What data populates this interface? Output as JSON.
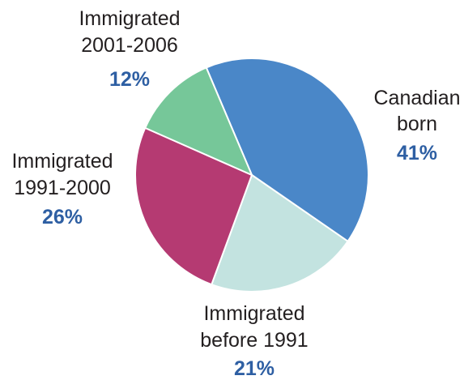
{
  "chart_data": {
    "type": "pie",
    "title": "",
    "value_color": "#2e5fa3",
    "slices": [
      {
        "lines": [
          "Canadian",
          "born"
        ],
        "value": 41,
        "value_label": "41%",
        "color": "#4a87c8"
      },
      {
        "lines": [
          "Immigrated",
          "before 1991"
        ],
        "value": 21,
        "value_label": "21%",
        "color": "#c3e3e0"
      },
      {
        "lines": [
          "Immigrated",
          "1991-2000"
        ],
        "value": 26,
        "value_label": "26%",
        "color": "#b53a72"
      },
      {
        "lines": [
          "Immigrated",
          "2001-2006"
        ],
        "value": 12,
        "value_label": "12%",
        "color": "#76c799"
      }
    ]
  }
}
